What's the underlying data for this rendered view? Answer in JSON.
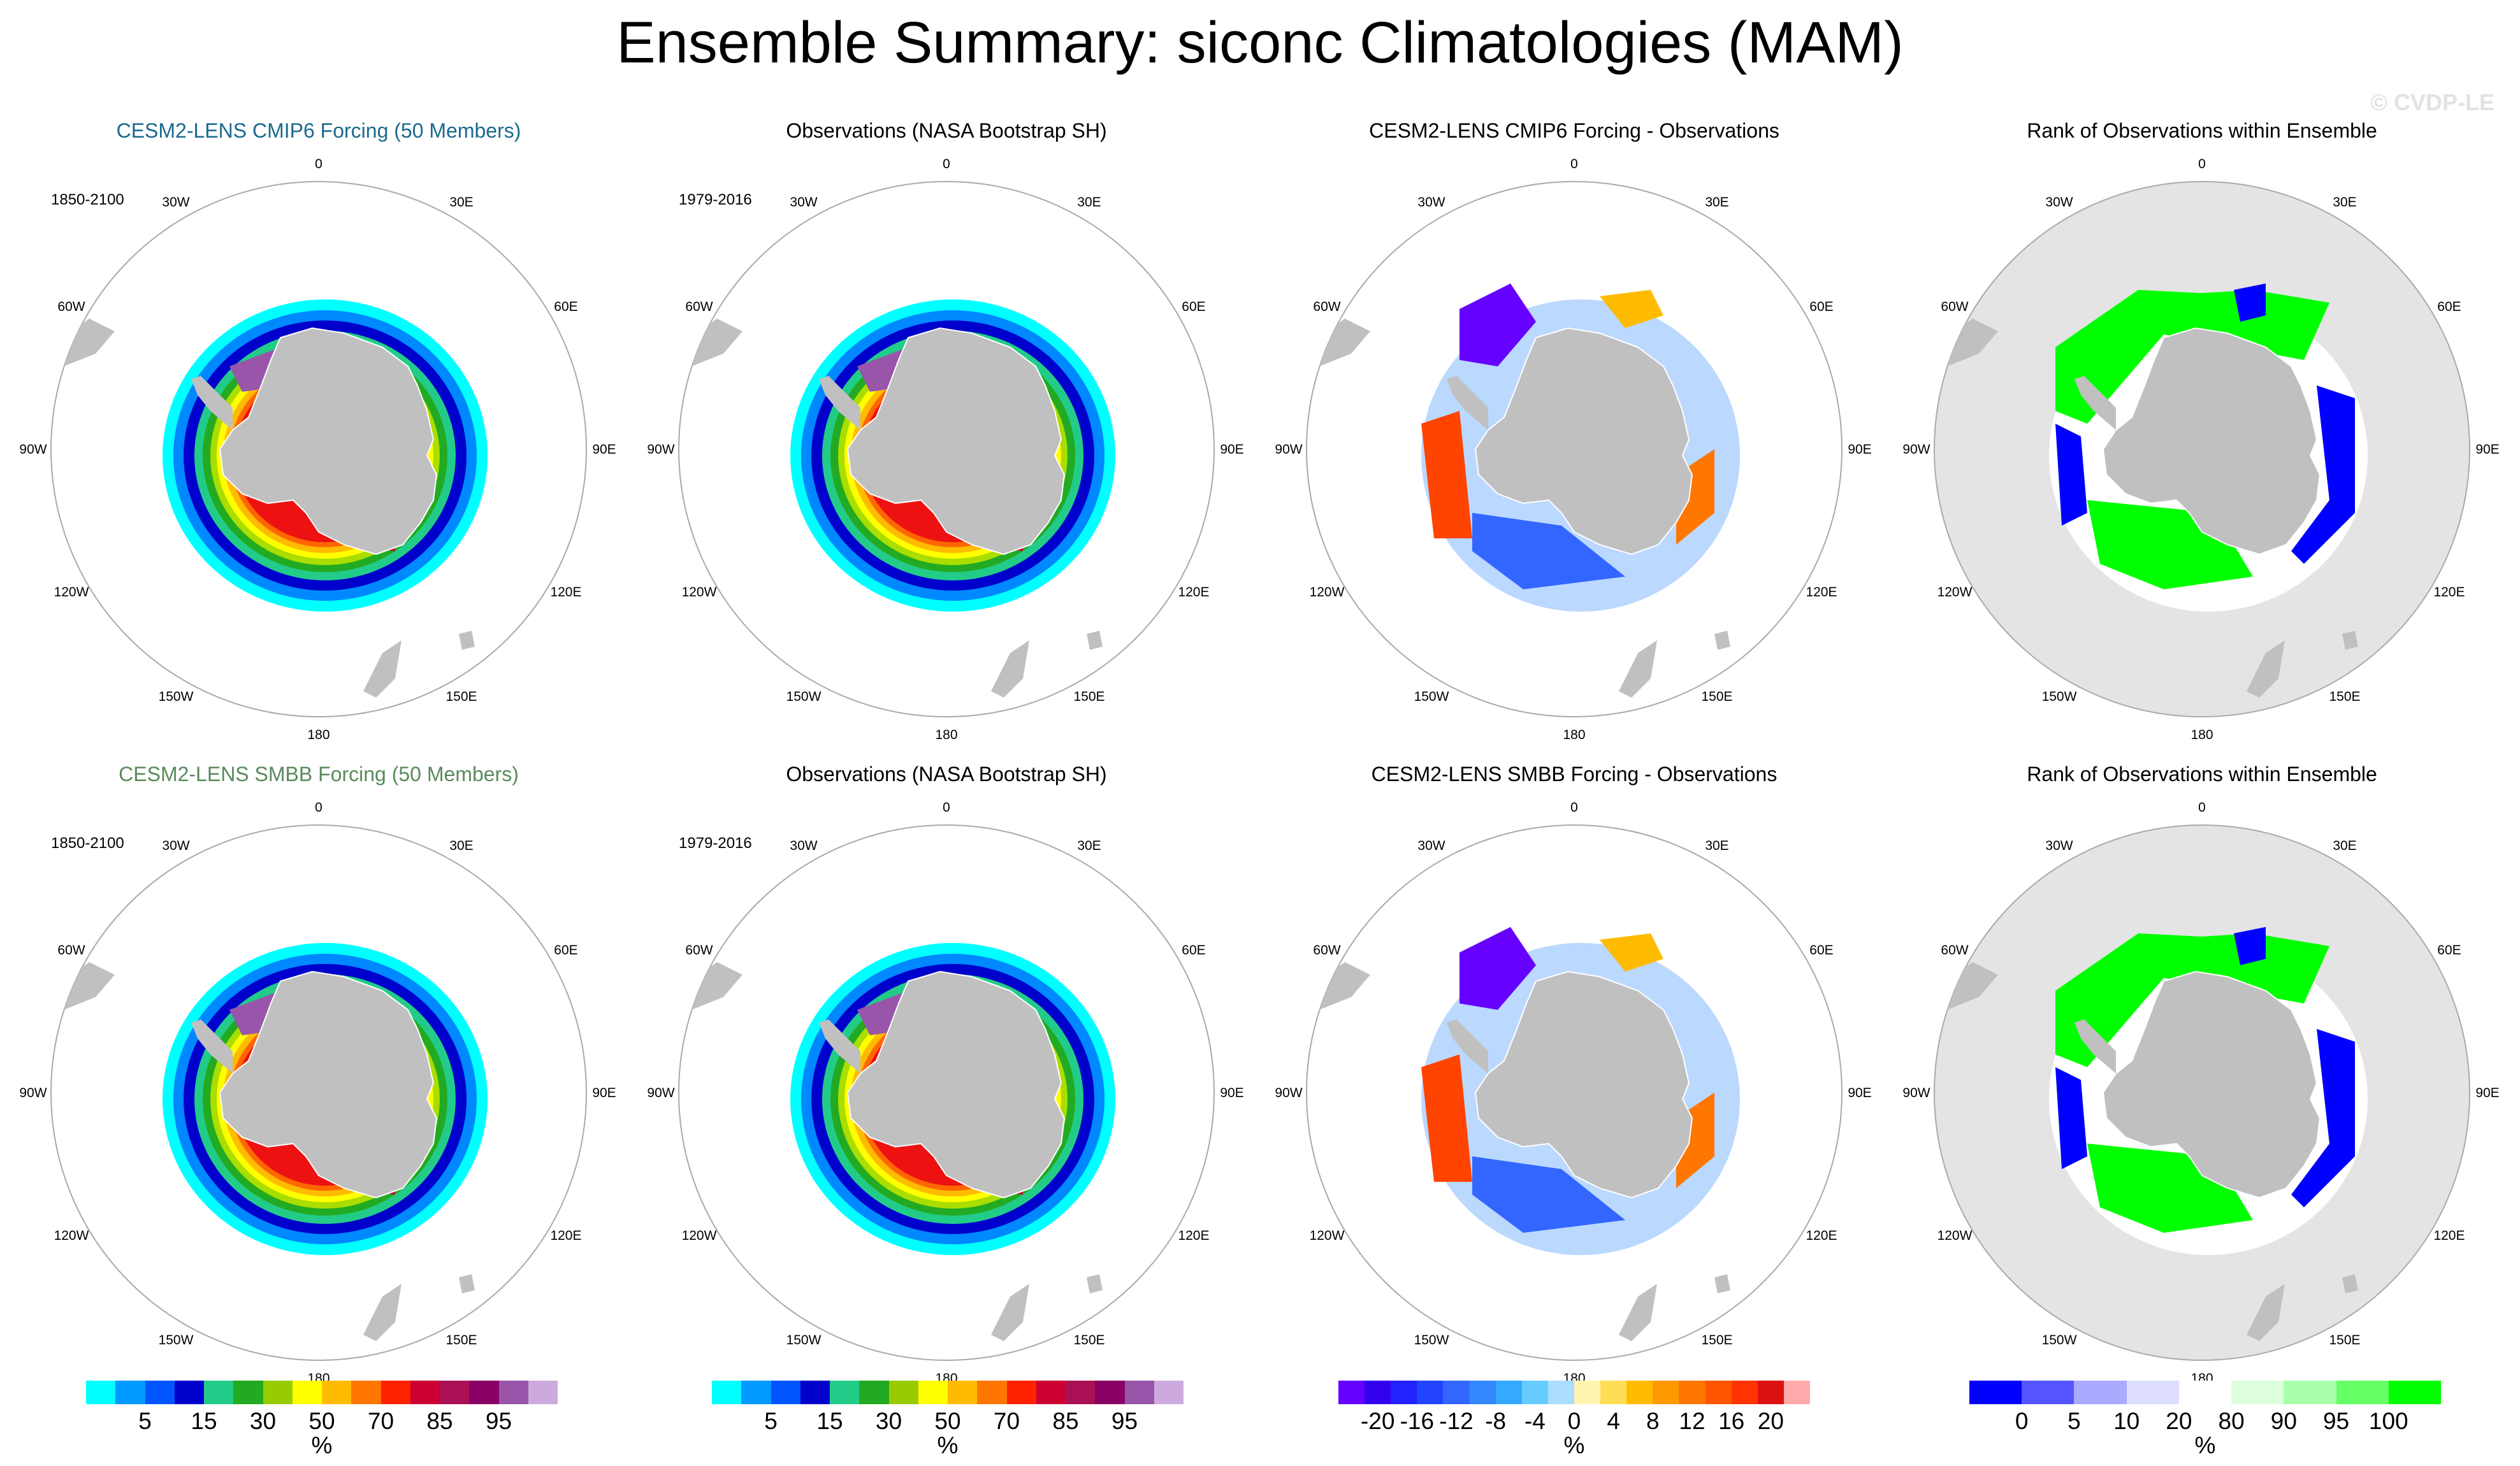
{
  "main_title": "Ensemble Summary: siconc Climatologies (MAM)",
  "watermark": "© CVDP-LE",
  "lon_labels": [
    "0",
    "30E",
    "60E",
    "90E",
    "120E",
    "150E",
    "180",
    "150W",
    "120W",
    "90W",
    "60W",
    "30W"
  ],
  "panels": [
    {
      "title": "CESM2-LENS CMIP6 Forcing (50 Members)",
      "period": "1850-2100",
      "kind": "ice"
    },
    {
      "title": "Observations (NASA Bootstrap SH)",
      "period": "1979-2016",
      "kind": "ice_obs"
    },
    {
      "title": "CESM2-LENS CMIP6 Forcing - Observations",
      "period": "",
      "kind": "diff"
    },
    {
      "title": "Rank of Observations within Ensemble",
      "period": "",
      "kind": "rank"
    },
    {
      "title": "CESM2-LENS SMBB Forcing (50 Members)",
      "period": "1850-2100",
      "kind": "ice"
    },
    {
      "title": "Observations (NASA Bootstrap SH)",
      "period": "1979-2016",
      "kind": "ice_obs"
    },
    {
      "title": "CESM2-LENS SMBB Forcing - Observations",
      "period": "",
      "kind": "diff"
    },
    {
      "title": "Rank of Observations within Ensemble",
      "period": "",
      "kind": "rank"
    }
  ],
  "colorbars": [
    {
      "ticks": [
        "5",
        "15",
        "30",
        "50",
        "70",
        "85",
        "95"
      ],
      "unit": "%",
      "colors": [
        "#00ffff",
        "#0099ff",
        "#0055ff",
        "#0000cc",
        "#22cc88",
        "#22aa22",
        "#99cc00",
        "#ffff00",
        "#ffbb00",
        "#ff7700",
        "#ff2200",
        "#cc0033",
        "#aa1155",
        "#880066",
        "#9955aa",
        "#ccaadd"
      ]
    },
    {
      "ticks": [
        "5",
        "15",
        "30",
        "50",
        "70",
        "85",
        "95"
      ],
      "unit": "%",
      "colors": [
        "#00ffff",
        "#0099ff",
        "#0055ff",
        "#0000cc",
        "#22cc88",
        "#22aa22",
        "#99cc00",
        "#ffff00",
        "#ffbb00",
        "#ff7700",
        "#ff2200",
        "#cc0033",
        "#aa1155",
        "#880066",
        "#9955aa",
        "#ccaadd"
      ]
    },
    {
      "ticks": [
        "-20",
        "-16",
        "-12",
        "-8",
        "-4",
        "0",
        "4",
        "8",
        "12",
        "16",
        "20"
      ],
      "unit": "%",
      "colors": [
        "#6600ff",
        "#3300ee",
        "#2222ff",
        "#2244ff",
        "#3366ff",
        "#3388ff",
        "#33aaff",
        "#66ccff",
        "#aaddff",
        "#fff3b0",
        "#ffdd55",
        "#ffbb00",
        "#ff9900",
        "#ff7700",
        "#ff5500",
        "#ff3300",
        "#dd1111",
        "#ffaaaa"
      ]
    },
    {
      "ticks": [
        "0",
        "5",
        "10",
        "20",
        "80",
        "90",
        "95",
        "100"
      ],
      "unit": "%",
      "colors": [
        "#0000ff",
        "#5555ff",
        "#aaaaff",
        "#ddddff",
        "#ffffff",
        "#ddffdd",
        "#aaffaa",
        "#66ff66",
        "#00ff00"
      ]
    }
  ]
}
